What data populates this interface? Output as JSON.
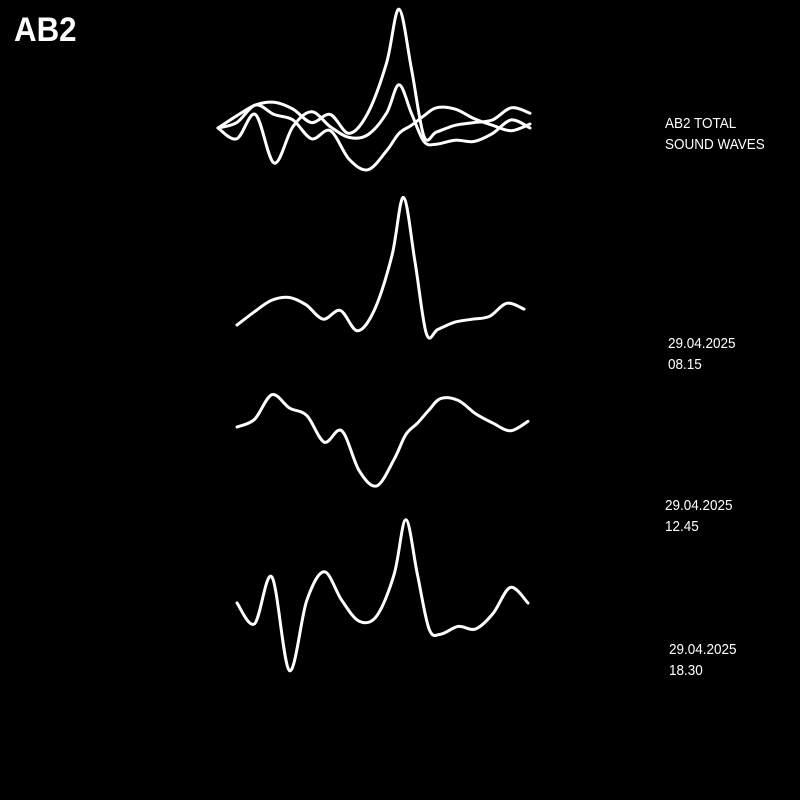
{
  "logo": "AB2",
  "colors": {
    "background": "#000000",
    "foreground": "#ffffff"
  },
  "labels": {
    "total": {
      "line1": "AB2 TOTAL",
      "line2": "SOUND WAVES"
    },
    "wave1": {
      "date": "29.04.2025",
      "time": "08.15"
    },
    "wave2": {
      "date": "29.04.2025",
      "time": "12.45"
    },
    "wave3": {
      "date": "29.04.2025",
      "time": "18.30"
    }
  },
  "chart_data": {
    "type": "line",
    "grid": false,
    "x": [
      0,
      0.06,
      0.12,
      0.18,
      0.24,
      0.3,
      0.36,
      0.42,
      0.48,
      0.54,
      0.58,
      0.62,
      0.66,
      0.7,
      0.76,
      0.82,
      0.88,
      0.94,
      1.0
    ],
    "series": [
      {
        "name": "29.04.2025 08.15",
        "values": [
          0.0,
          0.45,
          0.85,
          0.95,
          0.7,
          0.2,
          0.5,
          -0.2,
          0.55,
          2.4,
          4.4,
          2.2,
          -0.3,
          -0.15,
          0.1,
          0.2,
          0.3,
          0.75,
          0.55
        ]
      },
      {
        "name": "29.04.2025 12.45",
        "values": [
          0.0,
          0.2,
          0.85,
          0.5,
          0.3,
          -0.4,
          -0.1,
          -1.15,
          -1.55,
          -0.85,
          -0.2,
          0.1,
          0.45,
          0.75,
          0.7,
          0.35,
          0.1,
          -0.1,
          0.15
        ]
      },
      {
        "name": "29.04.2025 18.30",
        "values": [
          0.0,
          -0.4,
          0.5,
          -1.3,
          0.05,
          0.6,
          0.05,
          -0.35,
          -0.25,
          0.55,
          1.6,
          0.55,
          -0.5,
          -0.6,
          -0.45,
          -0.5,
          -0.2,
          0.3,
          0.0
        ]
      }
    ],
    "ylim": [
      -2,
      4.6
    ]
  }
}
